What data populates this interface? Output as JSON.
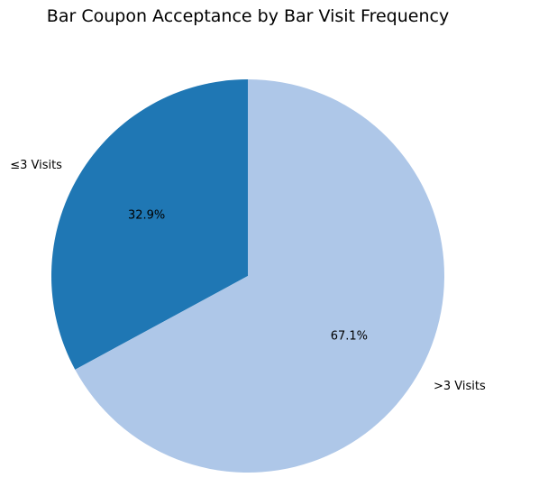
{
  "chart_data": {
    "type": "pie",
    "title": "Bar Coupon Acceptance by Bar Visit Frequency",
    "slices": [
      {
        "label": "≤3 Visits",
        "value": 32.9,
        "pct_label": "32.9%",
        "color": "#1f77b4"
      },
      {
        "label": ">3 Visits",
        "value": 67.1,
        "pct_label": "67.1%",
        "color": "#aec7e8"
      }
    ],
    "start_angle_deg": 90,
    "direction": "counterclockwise"
  }
}
